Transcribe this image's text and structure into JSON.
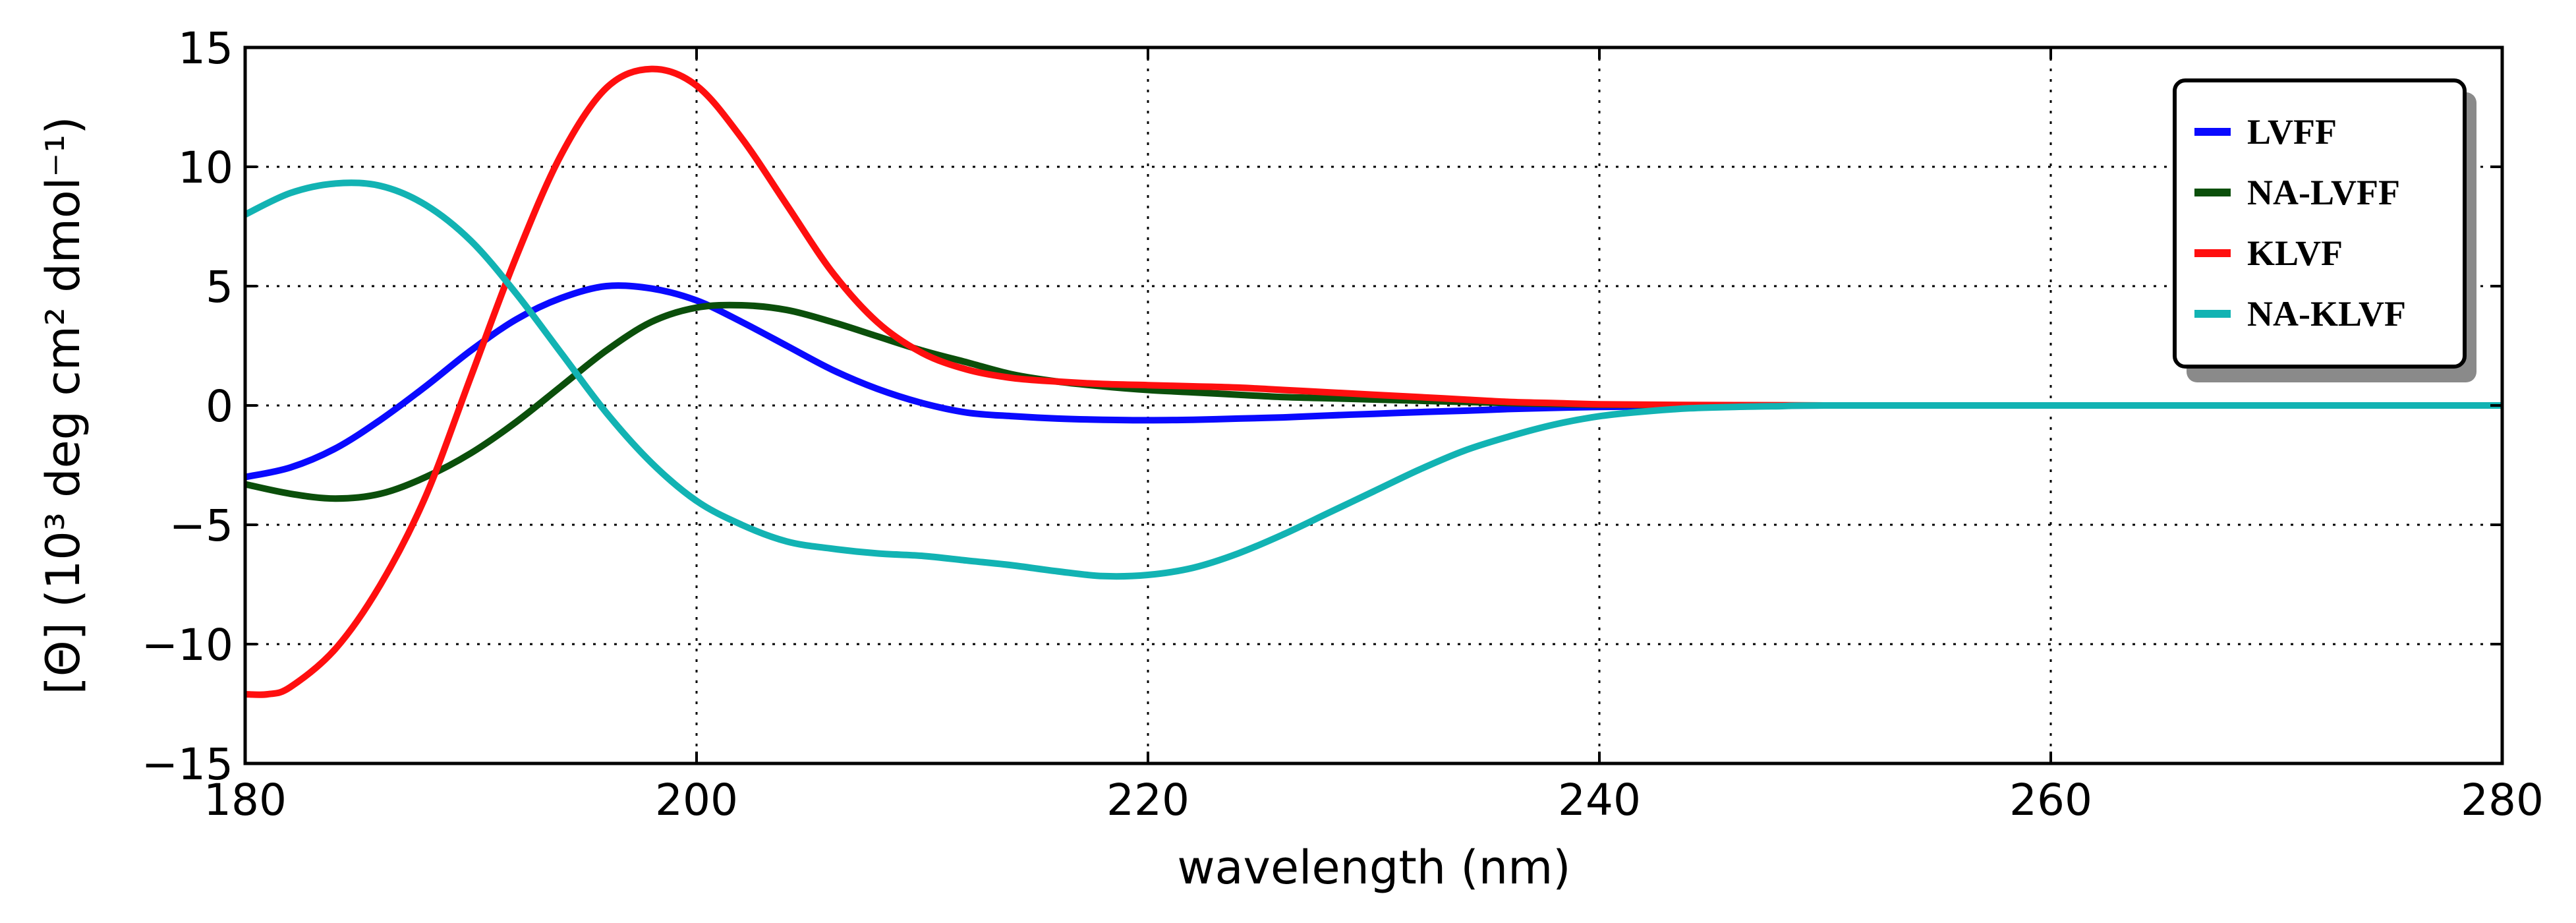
{
  "chart_data": {
    "type": "line",
    "title": "",
    "xlabel": "wavelength (nm)",
    "ylabel": "[Θ] (10³  deg cm²  dmol⁻¹)",
    "xlim": [
      180,
      280
    ],
    "ylim": [
      -15,
      15
    ],
    "xticks": [
      180,
      200,
      220,
      240,
      260,
      280
    ],
    "yticks": [
      -15,
      -10,
      -5,
      0,
      5,
      10,
      15
    ],
    "xtick_labels": [
      "180",
      "200",
      "220",
      "240",
      "260",
      "280"
    ],
    "ytick_labels": [
      "−15",
      "−10",
      "−5",
      "0",
      "5",
      "10",
      "15"
    ],
    "grid": true,
    "legend_position": "top-right",
    "series": [
      {
        "name": "LVFF",
        "color": "#0a0aff",
        "x": [
          180,
          182,
          184,
          186,
          188,
          190,
          192,
          194,
          196,
          198,
          200,
          202,
          204,
          206,
          208,
          210,
          212,
          214,
          216,
          218,
          220,
          222,
          224,
          226,
          228,
          230,
          232,
          234,
          236,
          238,
          240,
          244,
          250,
          260,
          270,
          280
        ],
        "y": [
          -3.0,
          -2.6,
          -1.8,
          -0.6,
          0.8,
          2.3,
          3.6,
          4.5,
          5.0,
          4.9,
          4.4,
          3.5,
          2.5,
          1.5,
          0.7,
          0.1,
          -0.3,
          -0.45,
          -0.55,
          -0.6,
          -0.62,
          -0.6,
          -0.55,
          -0.5,
          -0.42,
          -0.35,
          -0.28,
          -0.22,
          -0.15,
          -0.1,
          -0.06,
          -0.02,
          0,
          0,
          0,
          0
        ]
      },
      {
        "name": "NA-LVFF",
        "color": "#0b4f0b",
        "x": [
          180,
          182,
          184,
          186,
          188,
          190,
          192,
          194,
          196,
          198,
          200,
          202,
          204,
          206,
          208,
          210,
          212,
          214,
          216,
          218,
          220,
          222,
          224,
          226,
          228,
          230,
          232,
          234,
          236,
          238,
          240,
          244,
          250,
          260,
          270,
          280
        ],
        "y": [
          -3.3,
          -3.7,
          -3.9,
          -3.7,
          -3.0,
          -2.0,
          -0.7,
          0.8,
          2.3,
          3.5,
          4.1,
          4.2,
          4.0,
          3.5,
          2.9,
          2.3,
          1.8,
          1.3,
          1.0,
          0.8,
          0.65,
          0.55,
          0.45,
          0.35,
          0.3,
          0.25,
          0.2,
          0.15,
          0.1,
          0.06,
          0.03,
          0.01,
          0,
          0,
          0,
          0
        ]
      },
      {
        "name": "KLVF",
        "color": "#ff0f0f",
        "x": [
          180,
          181,
          182,
          184,
          186,
          188,
          190,
          192,
          194,
          196,
          198,
          200,
          202,
          204,
          206,
          208,
          210,
          212,
          214,
          216,
          218,
          220,
          222,
          224,
          226,
          228,
          230,
          232,
          234,
          236,
          238,
          240,
          244,
          250,
          260,
          270,
          280
        ],
        "y": [
          -12.1,
          -12.1,
          -11.8,
          -10.2,
          -7.5,
          -3.8,
          1.2,
          6.2,
          10.5,
          13.3,
          14.1,
          13.4,
          11.2,
          8.4,
          5.6,
          3.5,
          2.2,
          1.5,
          1.15,
          1.0,
          0.9,
          0.85,
          0.8,
          0.75,
          0.65,
          0.55,
          0.45,
          0.35,
          0.25,
          0.15,
          0.1,
          0.05,
          0.02,
          0,
          0,
          0,
          0
        ]
      },
      {
        "name": "NA-KLVF",
        "color": "#12b3b3",
        "x": [
          180,
          182,
          184,
          186,
          188,
          190,
          192,
          194,
          196,
          198,
          200,
          202,
          204,
          206,
          208,
          210,
          212,
          214,
          216,
          218,
          220,
          222,
          224,
          226,
          228,
          230,
          232,
          234,
          236,
          238,
          240,
          242,
          244,
          246,
          248,
          250,
          260,
          270,
          280
        ],
        "y": [
          8.0,
          8.9,
          9.3,
          9.2,
          8.4,
          6.9,
          4.7,
          2.2,
          -0.3,
          -2.4,
          -4.0,
          -5.0,
          -5.7,
          -6.0,
          -6.2,
          -6.3,
          -6.5,
          -6.7,
          -6.95,
          -7.15,
          -7.1,
          -6.8,
          -6.2,
          -5.4,
          -4.5,
          -3.6,
          -2.7,
          -1.9,
          -1.3,
          -0.8,
          -0.45,
          -0.25,
          -0.12,
          -0.06,
          -0.03,
          0,
          0,
          0,
          0
        ]
      }
    ]
  }
}
